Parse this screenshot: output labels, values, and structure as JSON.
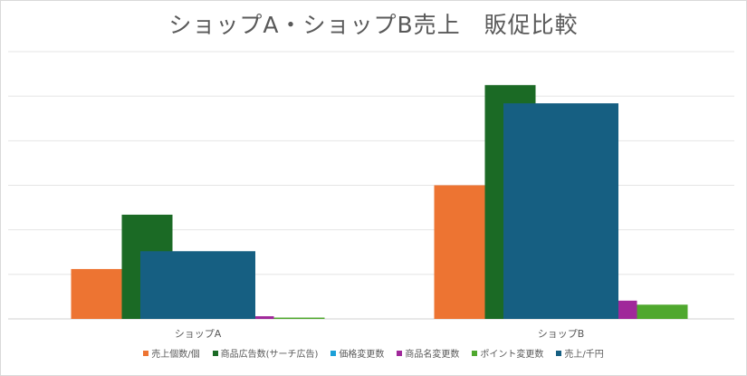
{
  "chart_data": {
    "type": "bar",
    "title": "ショップA・ショップB売上　販促比較",
    "categories": [
      "ショップA",
      "ショップB"
    ],
    "ylim": [
      0,
      6
    ],
    "y_unit_note": "relative gridline units (no axis labels shown)",
    "grid": true,
    "legend_position": "bottom",
    "series": [
      {
        "name": "売上個数/個",
        "color": "#ED7432",
        "axis": "primary",
        "values": [
          1.12,
          3.0
        ]
      },
      {
        "name": "商品広告数(サーチ広告)",
        "color": "#1B6A25",
        "axis": "primary",
        "values": [
          2.34,
          5.25
        ]
      },
      {
        "name": "価格変更数",
        "color": "#1BA0D8",
        "axis": "primary",
        "values": [
          0,
          0
        ]
      },
      {
        "name": "商品名変更数",
        "color": "#A0289A",
        "axis": "primary",
        "values": [
          0.06,
          0.41
        ]
      },
      {
        "name": "ポイント変更数",
        "color": "#4FA82E",
        "axis": "primary",
        "values": [
          0.03,
          0.32
        ]
      },
      {
        "name": "売上/千円",
        "color": "#165F82",
        "axis": "secondary",
        "values": [
          1.52,
          4.84
        ]
      }
    ]
  }
}
